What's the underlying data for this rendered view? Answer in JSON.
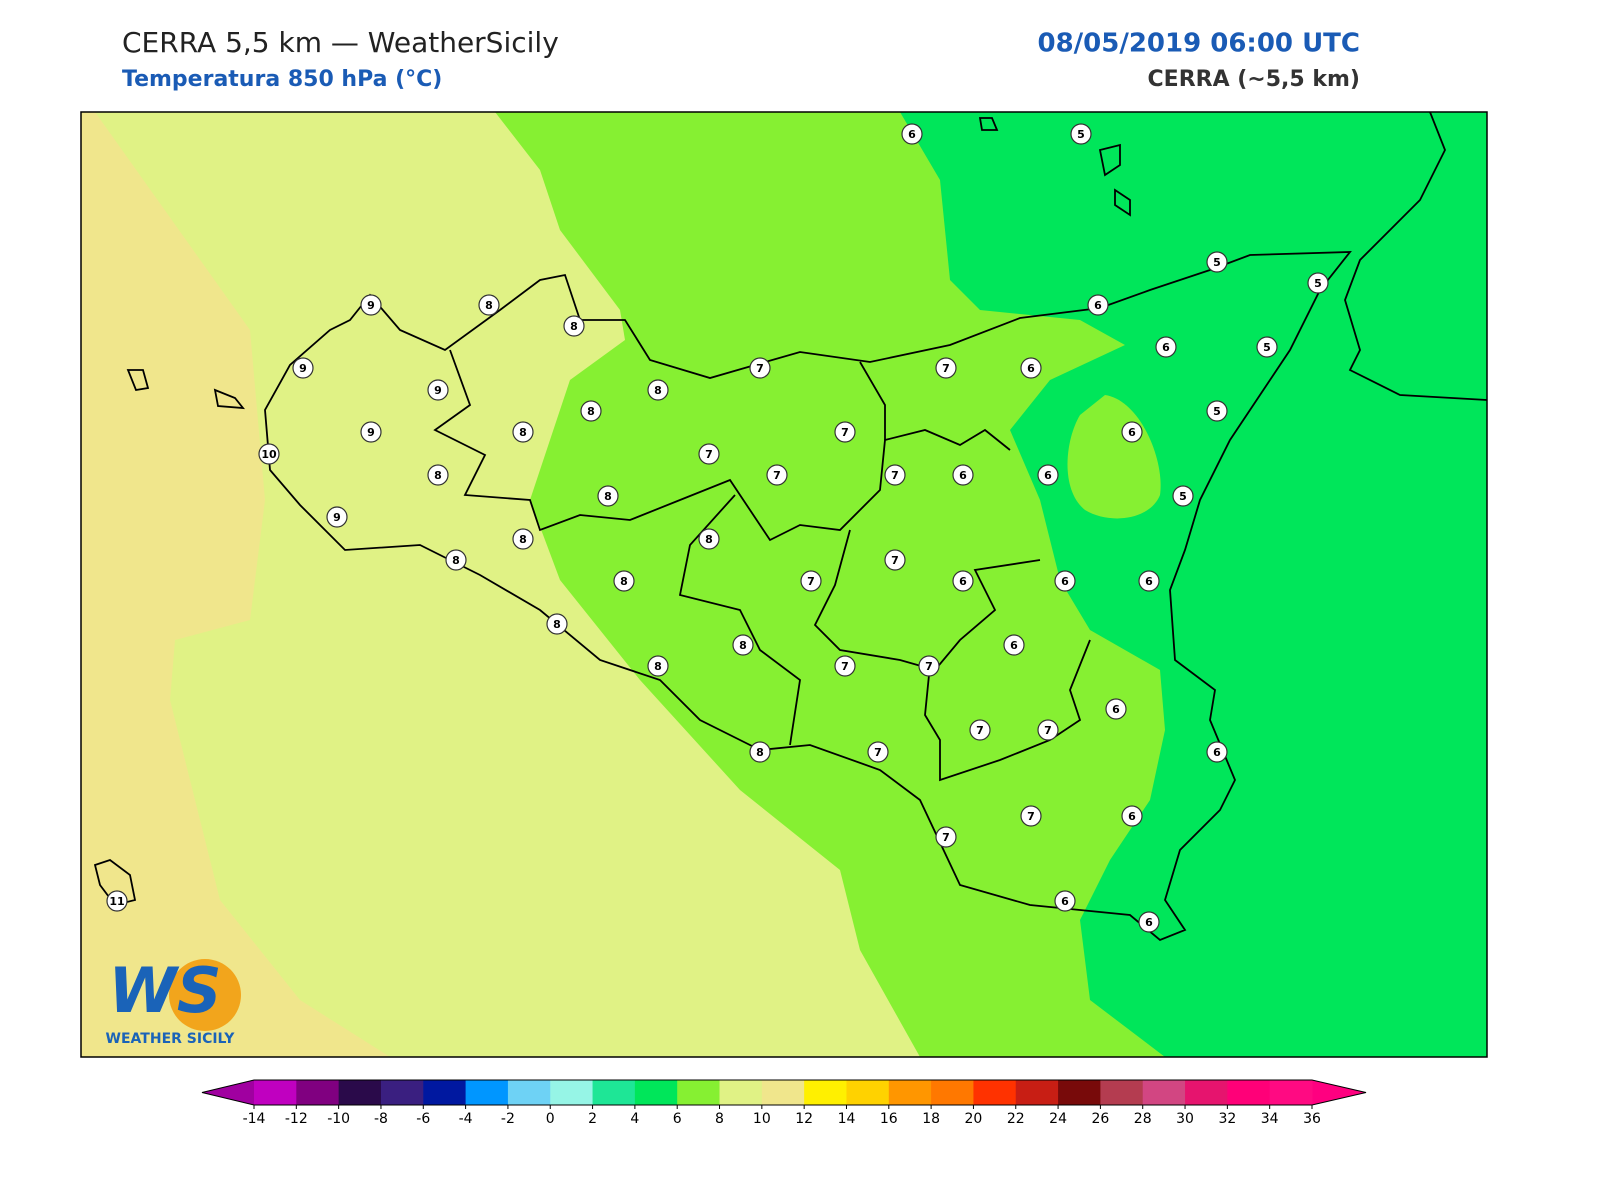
{
  "header": {
    "title": "CERRA 5,5 km — WeatherSicily",
    "subtitle": "Temperatura 850 hPa (°C)",
    "date": "08/05/2019 06:00 UTC",
    "source": "CERRA (~5,5 km)"
  },
  "stations": [
    6,
    5,
    5,
    5,
    6,
    9,
    8,
    8,
    9,
    7,
    7,
    6,
    6,
    5,
    9,
    8,
    8,
    5,
    9,
    8,
    7,
    6,
    10,
    7,
    8,
    7,
    7,
    6,
    6,
    5,
    8,
    9,
    8,
    8,
    8,
    7,
    8,
    7,
    6,
    6,
    6,
    8,
    6,
    8,
    8,
    7,
    7,
    6,
    7,
    7,
    8,
    7,
    6,
    7,
    7,
    6,
    6,
    6,
    11
  ],
  "colorbar": {
    "ticks": [
      -14,
      -12,
      -10,
      -8,
      -6,
      -4,
      -2,
      0,
      2,
      4,
      6,
      8,
      10,
      12,
      14,
      16,
      18,
      20,
      22,
      24,
      26,
      28,
      30,
      32,
      34,
      36
    ],
    "colors": [
      "#c000c0",
      "#800080",
      "#2a0a4a",
      "#3a1f80",
      "#0018a0",
      "#0096ff",
      "#6ed2f5",
      "#96f5e6",
      "#1ee696",
      "#00e65a",
      "#86f032",
      "#e0f285",
      "#f0e68c",
      "#fff000",
      "#ffd200",
      "#ff9600",
      "#ff7800",
      "#ff3200",
      "#c81e14",
      "#780a0a",
      "#b43c50",
      "#d24682",
      "#e6146e",
      "#ff0078",
      "#ff0a82"
    ],
    "under_color": "#a000a0",
    "over_color": "#ff0080"
  },
  "logo": {
    "mark": "WS",
    "name": "WEATHER SICILY"
  }
}
